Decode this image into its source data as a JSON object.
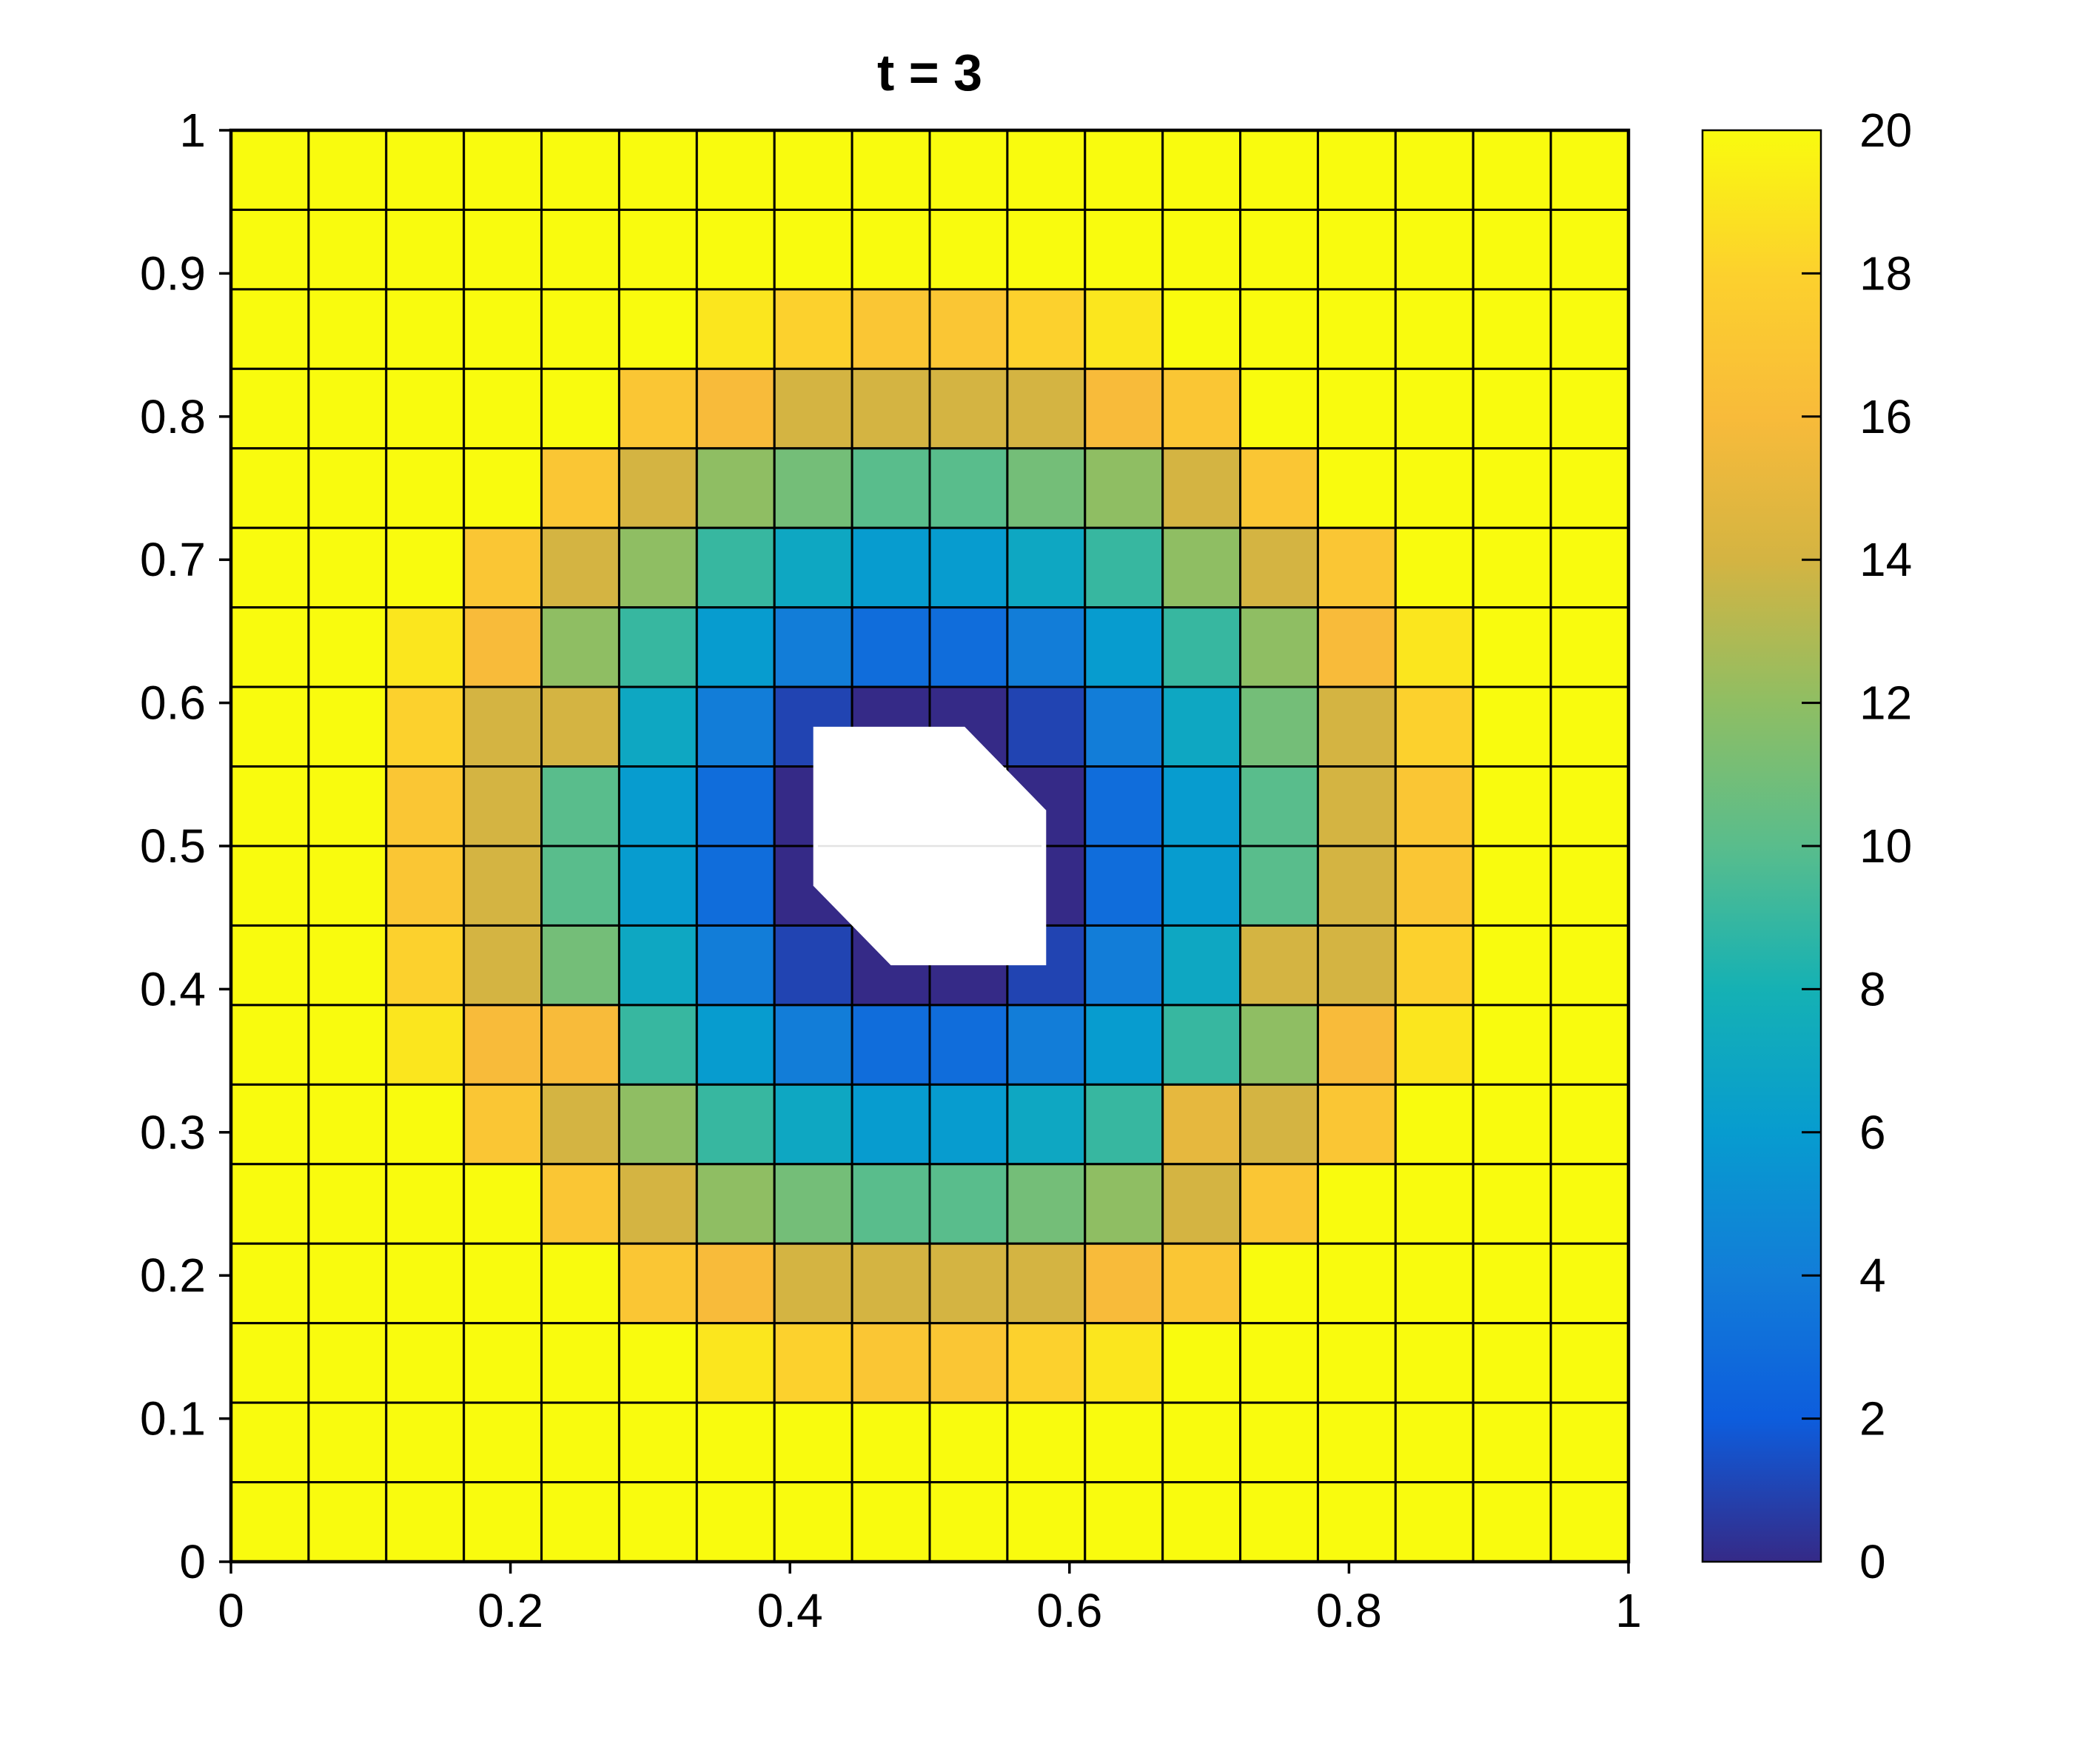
{
  "figure": {
    "title": "t = 3"
  },
  "chart_data": {
    "type": "heatmap",
    "title": "t = 3",
    "xlabel": "",
    "ylabel": "",
    "xlim": [
      0,
      1
    ],
    "ylim": [
      0,
      1
    ],
    "grid": {
      "cols": 18,
      "rows": 18,
      "cell_borders": true,
      "border_color": "#000000"
    },
    "x_ticks": {
      "values": [
        0,
        0.2,
        0.4,
        0.6,
        0.8,
        1
      ],
      "labels": [
        "0",
        "0.2",
        "0.4",
        "0.6",
        "0.8",
        "1"
      ]
    },
    "y_ticks": {
      "values": [
        0,
        0.1,
        0.2,
        0.3,
        0.4,
        0.5,
        0.6,
        0.7,
        0.8,
        0.9,
        1
      ],
      "labels": [
        "0",
        "0.1",
        "0.2",
        "0.3",
        "0.4",
        "0.5",
        "0.6",
        "0.7",
        "0.8",
        "0.9",
        "1"
      ]
    },
    "colorbar": {
      "min": 0,
      "max": 20,
      "tick_values": [
        0,
        2,
        4,
        6,
        8,
        10,
        12,
        14,
        16,
        18,
        20
      ],
      "tick_labels": [
        "0",
        "2",
        "4",
        "6",
        "8",
        "10",
        "12",
        "14",
        "16",
        "18",
        "20"
      ],
      "position": "right"
    },
    "colormap": "parula",
    "colormap_stops": [
      "#352a87",
      "#0d5ddd",
      "#127dd8",
      "#079ccf",
      "#15b1b4",
      "#59bd8c",
      "#8fbe63",
      "#d4b442",
      "#f8bb3a",
      "#fcd12d",
      "#f9fb0e"
    ],
    "values_row_order": "top-to-bottom",
    "values": [
      [
        20,
        20,
        20,
        20,
        20,
        20,
        20,
        20,
        20,
        20,
        20,
        20,
        20,
        20,
        20,
        20,
        20,
        20
      ],
      [
        20,
        20,
        20,
        20,
        20,
        20,
        20,
        20,
        20,
        20,
        20,
        20,
        20,
        20,
        20,
        20,
        20,
        20
      ],
      [
        20,
        20,
        20,
        20,
        20,
        20,
        19,
        18,
        17,
        17,
        18,
        19,
        20,
        20,
        20,
        20,
        20,
        20
      ],
      [
        20,
        20,
        20,
        20,
        20,
        17,
        16,
        14,
        14,
        14,
        14,
        16,
        17,
        20,
        20,
        20,
        20,
        20
      ],
      [
        20,
        20,
        20,
        20,
        17,
        14,
        12,
        11,
        10,
        10,
        11,
        12,
        14,
        17,
        20,
        20,
        20,
        20
      ],
      [
        20,
        20,
        20,
        17,
        14,
        12,
        9,
        7,
        6,
        6,
        7,
        9,
        12,
        14,
        17,
        20,
        20,
        20
      ],
      [
        20,
        20,
        19,
        16,
        12,
        9,
        6,
        4,
        3,
        3,
        4,
        6,
        9,
        12,
        16,
        19,
        20,
        20
      ],
      [
        20,
        20,
        18,
        14,
        14,
        7,
        4,
        1,
        0,
        0,
        1,
        4,
        7,
        11,
        14,
        18,
        20,
        20
      ],
      [
        20,
        20,
        17,
        14,
        10,
        6,
        3,
        0,
        null,
        null,
        0,
        3,
        6,
        10,
        14,
        17,
        20,
        20
      ],
      [
        20,
        20,
        17,
        14,
        10,
        6,
        3,
        0,
        null,
        null,
        0,
        3,
        6,
        10,
        14,
        17,
        20,
        20
      ],
      [
        20,
        20,
        18,
        14,
        11,
        7,
        4,
        1,
        0,
        0,
        1,
        4,
        7,
        14,
        14,
        18,
        20,
        20
      ],
      [
        20,
        20,
        19,
        16,
        16,
        9,
        6,
        4,
        3,
        3,
        4,
        6,
        9,
        12,
        16,
        19,
        20,
        20
      ],
      [
        20,
        20,
        20,
        17,
        14,
        12,
        9,
        7,
        6,
        6,
        7,
        9,
        15,
        14,
        17,
        20,
        20,
        20
      ],
      [
        20,
        20,
        20,
        20,
        17,
        14,
        12,
        11,
        10,
        10,
        11,
        12,
        14,
        17,
        20,
        20,
        20,
        20
      ],
      [
        20,
        20,
        20,
        20,
        20,
        17,
        16,
        14,
        14,
        14,
        14,
        16,
        17,
        20,
        20,
        20,
        20,
        20
      ],
      [
        20,
        20,
        20,
        20,
        20,
        20,
        19,
        18,
        17,
        17,
        18,
        19,
        20,
        20,
        20,
        20,
        20,
        20
      ],
      [
        20,
        20,
        20,
        20,
        20,
        20,
        20,
        20,
        20,
        20,
        20,
        20,
        20,
        20,
        20,
        20,
        20,
        20
      ],
      [
        20,
        20,
        20,
        20,
        20,
        20,
        20,
        20,
        20,
        20,
        20,
        20,
        20,
        20,
        20,
        20,
        20,
        20
      ]
    ],
    "hole": {
      "description": "white NaN region at domain center",
      "polygon": [
        [
          0.4167,
          0.5833
        ],
        [
          0.525,
          0.5833
        ],
        [
          0.5833,
          0.525
        ],
        [
          0.5833,
          0.4167
        ],
        [
          0.4722,
          0.4167
        ],
        [
          0.4167,
          0.4722
        ]
      ],
      "seam_y": 0.5
    }
  }
}
